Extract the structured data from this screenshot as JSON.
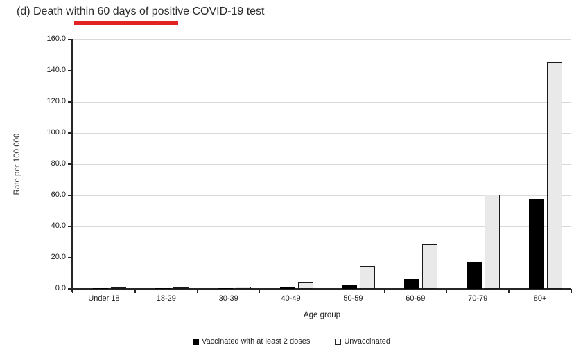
{
  "figure": {
    "title_underline_color": "#e32222",
    "background": "#ffffff"
  },
  "chart_data": {
    "type": "bar",
    "title": "(d) Death within 60 days of positive COVID-19 test",
    "title_annotation": "red underline beneath the words 'within 60 days of'",
    "xlabel": "Age group",
    "ylabel": "Rate per 100,000",
    "ylim": [
      0,
      160
    ],
    "ytick_step": 20,
    "ytick_labels": [
      "0.0",
      "20.0",
      "40.0",
      "60.0",
      "80.0",
      "100.0",
      "120.0",
      "140.0",
      "160.0"
    ],
    "grid": true,
    "gridline_color": "#d9d9d9",
    "axis_color": "#262626",
    "legend_position": "bottom",
    "categories": [
      "Under 18",
      "18-29",
      "30-39",
      "40-49",
      "50-59",
      "60-69",
      "70-79",
      "80+"
    ],
    "series": [
      {
        "name": "Vaccinated with at least 2 doses",
        "color": "#000000",
        "values": [
          0.1,
          0.4,
          0.4,
          0.9,
          2.3,
          6.3,
          16.9,
          57.6
        ]
      },
      {
        "name": "Unvaccinated",
        "color": "#e9e9e9",
        "border_color": "#1a1a1a",
        "values": [
          0.4,
          0.7,
          1.4,
          4.4,
          14.6,
          28.3,
          60.3,
          145.5
        ]
      }
    ]
  }
}
